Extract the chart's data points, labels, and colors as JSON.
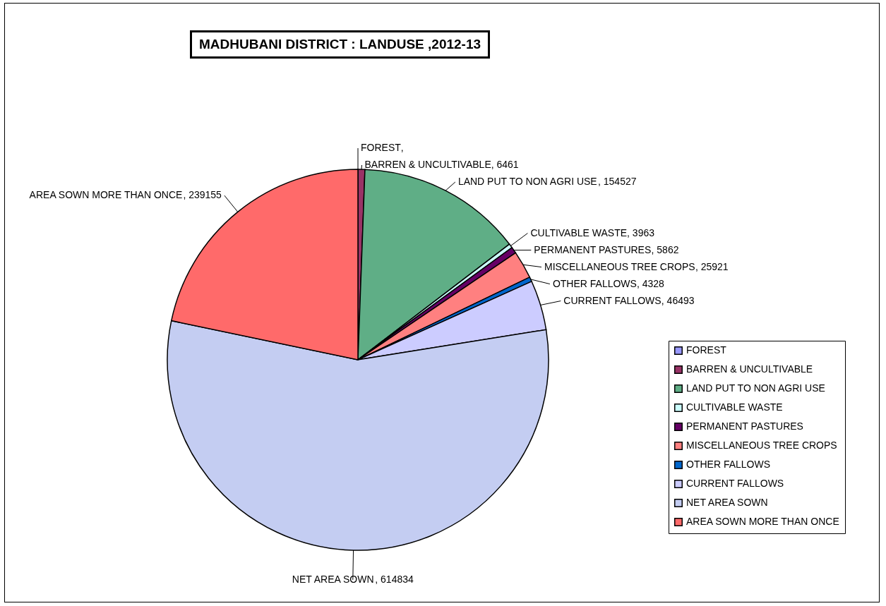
{
  "chart_data": {
    "type": "pie",
    "title": "MADHUBANI DISTRICT : LANDUSE ,2012-13",
    "categories": [
      "FOREST",
      "BARREN & UNCULTIVABLE",
      "LAND PUT TO NON AGRI USE",
      "CULTIVABLE WASTE",
      "PERMANENT PASTURES",
      "MISCELLANEOUS TREE CROPS",
      "OTHER FALLOWS",
      "CURRENT FALLOWS",
      "NET AREA SOWN",
      "AREA SOWN MORE THAN ONCE"
    ],
    "values": [
      null,
      6461,
      154527,
      3963,
      5862,
      25921,
      4328,
      46493,
      614834,
      239155
    ],
    "colors": [
      "#9999ff",
      "#993366",
      "#5fae86",
      "#ccffff",
      "#660066",
      "#ff8080",
      "#0066cc",
      "#ccccff",
      "#c4cdf2",
      "#ff6a6a"
    ],
    "value_labels": [
      ",",
      ", 6461",
      ", 154527",
      ", 3963",
      ", 5862",
      ", 25921",
      ", 4328",
      ", 46493",
      ", 614834",
      ", 239155"
    ],
    "legend": "right"
  }
}
